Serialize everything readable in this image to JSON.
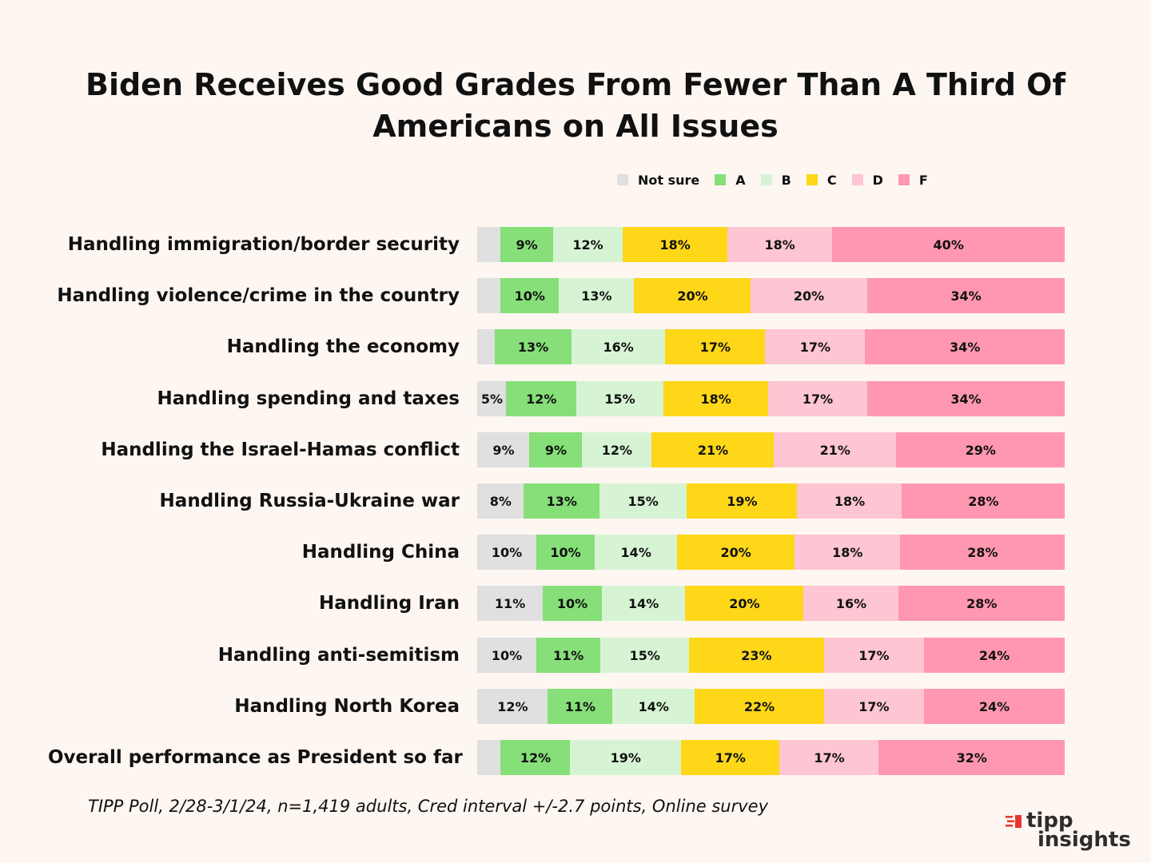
{
  "chart_data": {
    "type": "bar",
    "orientation": "horizontal",
    "stacked": true,
    "title_lines": [
      "Biden Receives Good Grades From Fewer Than A Third Of",
      "Americans on All Issues"
    ],
    "legend": [
      {
        "name": "Not sure",
        "color": "#e0e0e0"
      },
      {
        "name": "A",
        "color": "#86df78"
      },
      {
        "name": "B",
        "color": "#d6f4d4"
      },
      {
        "name": "C",
        "color": "#fdd718"
      },
      {
        "name": "D",
        "color": "#fec5d2"
      },
      {
        "name": "F",
        "color": "#ff97b0"
      }
    ],
    "categories": [
      "Handling immigration/border security",
      "Handling violence/crime in the country",
      "Handling the economy",
      "Handling spending and taxes",
      "Handling the Israel-Hamas conflict",
      "Handling Russia-Ukraine war",
      "Handling China",
      "Handling Iran",
      "Handling anti-semitism",
      "Handling North Korea",
      "Overall performance as President so far"
    ],
    "series": [
      {
        "name": "Not sure",
        "values": [
          4,
          4,
          3,
          5,
          9,
          8,
          10,
          11,
          10,
          12,
          4
        ],
        "labels": [
          "",
          "",
          "",
          "5%",
          "9%",
          "8%",
          "10%",
          "11%",
          "10%",
          "12%",
          ""
        ]
      },
      {
        "name": "A",
        "values": [
          9,
          10,
          13,
          12,
          9,
          13,
          10,
          10,
          11,
          11,
          12
        ],
        "labels": [
          "9%",
          "10%",
          "13%",
          "12%",
          "9%",
          "13%",
          "10%",
          "10%",
          "11%",
          "11%",
          "12%"
        ]
      },
      {
        "name": "B",
        "values": [
          12,
          13,
          16,
          15,
          12,
          15,
          14,
          14,
          15,
          14,
          19
        ],
        "labels": [
          "12%",
          "13%",
          "16%",
          "15%",
          "12%",
          "15%",
          "14%",
          "14%",
          "15%",
          "14%",
          "19%"
        ]
      },
      {
        "name": "C",
        "values": [
          18,
          20,
          17,
          18,
          21,
          19,
          20,
          20,
          23,
          22,
          17
        ],
        "labels": [
          "18%",
          "20%",
          "17%",
          "18%",
          "21%",
          "19%",
          "20%",
          "20%",
          "23%",
          "22%",
          "17%"
        ]
      },
      {
        "name": "D",
        "values": [
          18,
          20,
          17,
          17,
          21,
          18,
          18,
          16,
          17,
          17,
          17
        ],
        "labels": [
          "18%",
          "20%",
          "17%",
          "17%",
          "21%",
          "18%",
          "18%",
          "16%",
          "17%",
          "17%",
          "17%"
        ]
      },
      {
        "name": "F",
        "values": [
          40,
          34,
          34,
          34,
          29,
          28,
          28,
          28,
          24,
          24,
          32
        ],
        "labels": [
          "40%",
          "34%",
          "34%",
          "34%",
          "29%",
          "28%",
          "28%",
          "28%",
          "24%",
          "24%",
          "32%"
        ]
      }
    ]
  },
  "footnote": "TIPP Poll, 2/28-3/1/24, n=1,419 adults, Cred interval +/-2.7 points, Online survey",
  "logo": {
    "line1": "tipp",
    "line2": "insights",
    "mark_color": "#e8352e"
  }
}
